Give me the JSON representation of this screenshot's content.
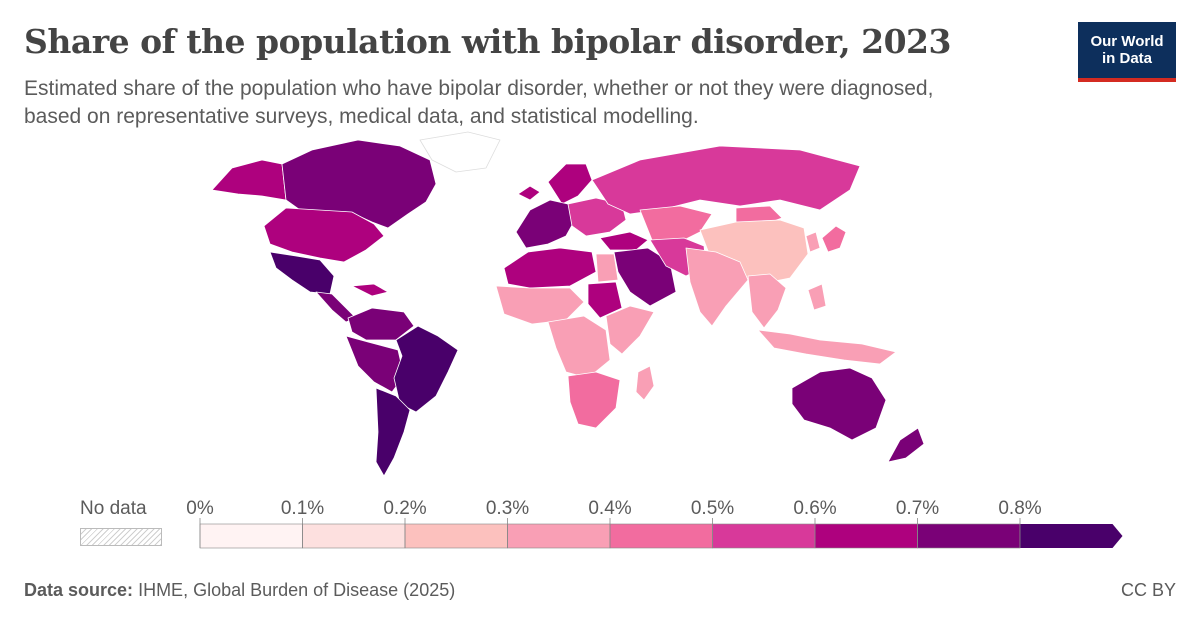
{
  "header": {
    "title": "Share of the population with bipolar disorder, 2023",
    "subtitle": "Estimated share of the population who have bipolar disorder, whether or not they were diagnosed, based on representative surveys, medical data, and statistical modelling."
  },
  "logo": {
    "line1": "Our World",
    "line2": "in Data",
    "bg": "#0d2f5c",
    "accent": "#d42b21"
  },
  "legend": {
    "nodata_label": "No data",
    "tick_labels": [
      "0%",
      "0.1%",
      "0.2%",
      "0.3%",
      "0.4%",
      "0.5%",
      "0.6%",
      "0.7%",
      "0.8%"
    ],
    "colors": [
      "#fff3f3",
      "#fde0df",
      "#fcc1be",
      "#f99fb5",
      "#f26c9f",
      "#d8399a",
      "#ae017e",
      "#7a0177",
      "#49006a"
    ]
  },
  "footer": {
    "source_label": "Data source:",
    "source_text": "IHME, Global Burden of Disease (2025)",
    "license": "CC BY"
  },
  "map_regions": [
    {
      "name": "canada",
      "color": "#7a0177"
    },
    {
      "name": "alaska",
      "color": "#ae017e"
    },
    {
      "name": "greenland",
      "color": "#ffffff"
    },
    {
      "name": "usa",
      "color": "#ae017e"
    },
    {
      "name": "mexico",
      "color": "#49006a"
    },
    {
      "name": "central-america",
      "color": "#7a0177"
    },
    {
      "name": "caribbean",
      "color": "#ae017e"
    },
    {
      "name": "colombia-venezuela",
      "color": "#7a0177"
    },
    {
      "name": "peru-bolivia",
      "color": "#7a0177"
    },
    {
      "name": "brazil",
      "color": "#49006a"
    },
    {
      "name": "southern-cone",
      "color": "#49006a"
    },
    {
      "name": "iceland-scandinavia",
      "color": "#ae017e"
    },
    {
      "name": "western-europe",
      "color": "#7a0177"
    },
    {
      "name": "eastern-europe",
      "color": "#d8399a"
    },
    {
      "name": "russia",
      "color": "#d8399a"
    },
    {
      "name": "turkey-caucasus",
      "color": "#ae017e"
    },
    {
      "name": "central-asia",
      "color": "#f26c9f"
    },
    {
      "name": "mongolia",
      "color": "#f26c9f"
    },
    {
      "name": "china",
      "color": "#fcc1be"
    },
    {
      "name": "korea",
      "color": "#f99fb5"
    },
    {
      "name": "japan",
      "color": "#f26c9f"
    },
    {
      "name": "middle-east",
      "color": "#7a0177"
    },
    {
      "name": "iran-afghanistan",
      "color": "#d8399a"
    },
    {
      "name": "north-africa",
      "color": "#ae017e"
    },
    {
      "name": "egypt",
      "color": "#f99fb5"
    },
    {
      "name": "sudan",
      "color": "#ae017e"
    },
    {
      "name": "west-africa",
      "color": "#f99fb5"
    },
    {
      "name": "central-africa",
      "color": "#f99fb5"
    },
    {
      "name": "east-africa",
      "color": "#f99fb5"
    },
    {
      "name": "southern-africa",
      "color": "#f26c9f"
    },
    {
      "name": "madagascar",
      "color": "#f99fb5"
    },
    {
      "name": "india-south-asia",
      "color": "#f99fb5"
    },
    {
      "name": "southeast-asia",
      "color": "#f99fb5"
    },
    {
      "name": "indonesia-philippines",
      "color": "#f99fb5"
    },
    {
      "name": "australia",
      "color": "#7a0177"
    },
    {
      "name": "new-zealand",
      "color": "#7a0177"
    }
  ]
}
